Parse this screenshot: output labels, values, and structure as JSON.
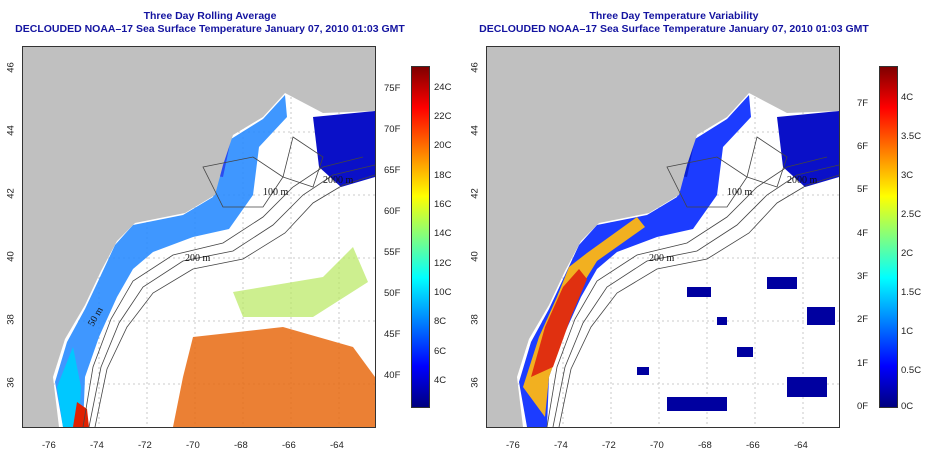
{
  "panels": [
    {
      "id": "avg",
      "title_line1": "Three Day Rolling Average",
      "title_line2": "DECLOUDED NOAA–17 Sea Surface Temperature January 07, 2010 01:03 GMT",
      "colorbar": {
        "left_labels": [
          "75F",
          "70F",
          "65F",
          "60F",
          "55F",
          "50F",
          "45F",
          "40F"
        ],
        "right_labels": [
          "24C",
          "22C",
          "20C",
          "18C",
          "16C",
          "14C",
          "12C",
          "10C",
          "8C",
          "6C",
          "4C"
        ]
      }
    },
    {
      "id": "var",
      "title_line1": "Three Day Temperature Variability",
      "title_line2": "DECLOUDED NOAA–17 Sea Surface Temperature January 07, 2010 01:03 GMT",
      "colorbar": {
        "left_labels": [
          "7F",
          "6F",
          "5F",
          "4F",
          "3F",
          "2F",
          "1F",
          "0F"
        ],
        "right_labels": [
          "4C",
          "3.5C",
          "3C",
          "2.5C",
          "2C",
          "1.5C",
          "1C",
          "0.5C",
          "0C"
        ]
      }
    }
  ],
  "axes": {
    "x_ticks": [
      "-76",
      "-74",
      "-72",
      "-70",
      "-68",
      "-66",
      "-64"
    ],
    "y_ticks": [
      "46",
      "44",
      "42",
      "40",
      "38",
      "36"
    ]
  },
  "contours": {
    "labels": [
      "200 m",
      "100 m",
      "2000 m",
      "50 m"
    ]
  },
  "colors": {
    "title": "#1414a0",
    "land": "#c0c0c0",
    "colormap": [
      "#7f0000",
      "#ff0000",
      "#ff8000",
      "#ffff00",
      "#80ff80",
      "#00ffff",
      "#0080ff",
      "#0000ff",
      "#00007f"
    ]
  }
}
